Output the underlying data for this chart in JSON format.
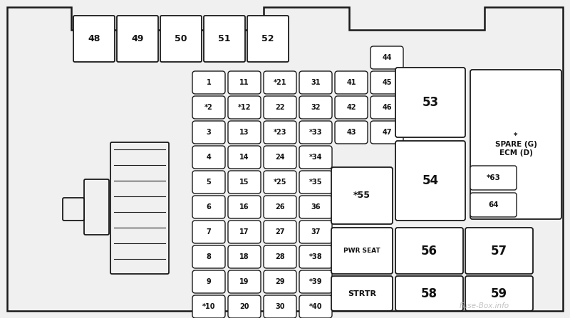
{
  "bg_color": "#f0f0f0",
  "border_color": "#1a1a1a",
  "fuse_face": "#ffffff",
  "text_color": "#111111",
  "watermark": "Fuse-Box.info",
  "small_fuses": [
    {
      "label": "1",
      "col": 0,
      "row": 0
    },
    {
      "label": "*2",
      "col": 0,
      "row": 1
    },
    {
      "label": "3",
      "col": 0,
      "row": 2
    },
    {
      "label": "4",
      "col": 0,
      "row": 3
    },
    {
      "label": "5",
      "col": 0,
      "row": 4
    },
    {
      "label": "6",
      "col": 0,
      "row": 5
    },
    {
      "label": "7",
      "col": 0,
      "row": 6
    },
    {
      "label": "8",
      "col": 0,
      "row": 7
    },
    {
      "label": "9",
      "col": 0,
      "row": 8
    },
    {
      "label": "*10",
      "col": 0,
      "row": 9
    },
    {
      "label": "11",
      "col": 1,
      "row": 0
    },
    {
      "label": "*12",
      "col": 1,
      "row": 1
    },
    {
      "label": "13",
      "col": 1,
      "row": 2
    },
    {
      "label": "14",
      "col": 1,
      "row": 3
    },
    {
      "label": "15",
      "col": 1,
      "row": 4
    },
    {
      "label": "16",
      "col": 1,
      "row": 5
    },
    {
      "label": "17",
      "col": 1,
      "row": 6
    },
    {
      "label": "18",
      "col": 1,
      "row": 7
    },
    {
      "label": "19",
      "col": 1,
      "row": 8
    },
    {
      "label": "20",
      "col": 1,
      "row": 9
    },
    {
      "label": "*21",
      "col": 2,
      "row": 0
    },
    {
      "label": "22",
      "col": 2,
      "row": 1
    },
    {
      "label": "*23",
      "col": 2,
      "row": 2
    },
    {
      "label": "24",
      "col": 2,
      "row": 3
    },
    {
      "label": "*25",
      "col": 2,
      "row": 4
    },
    {
      "label": "26",
      "col": 2,
      "row": 5
    },
    {
      "label": "27",
      "col": 2,
      "row": 6
    },
    {
      "label": "28",
      "col": 2,
      "row": 7
    },
    {
      "label": "29",
      "col": 2,
      "row": 8
    },
    {
      "label": "30",
      "col": 2,
      "row": 9
    },
    {
      "label": "31",
      "col": 3,
      "row": 0
    },
    {
      "label": "32",
      "col": 3,
      "row": 1
    },
    {
      "label": "*33",
      "col": 3,
      "row": 2
    },
    {
      "label": "*34",
      "col": 3,
      "row": 3
    },
    {
      "label": "*35",
      "col": 3,
      "row": 4
    },
    {
      "label": "36",
      "col": 3,
      "row": 5
    },
    {
      "label": "37",
      "col": 3,
      "row": 6
    },
    {
      "label": "*38",
      "col": 3,
      "row": 7
    },
    {
      "label": "*39",
      "col": 3,
      "row": 8
    },
    {
      "label": "*40",
      "col": 3,
      "row": 9
    },
    {
      "label": "41",
      "col": 4,
      "row": 0
    },
    {
      "label": "42",
      "col": 4,
      "row": 1
    },
    {
      "label": "43",
      "col": 4,
      "row": 2
    },
    {
      "label": "44",
      "col": 5,
      "row": -1
    },
    {
      "label": "45",
      "col": 5,
      "row": 0
    },
    {
      "label": "46",
      "col": 5,
      "row": 1
    },
    {
      "label": "47",
      "col": 5,
      "row": 2
    }
  ]
}
